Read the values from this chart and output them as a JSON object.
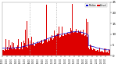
{
  "n_points": 1440,
  "seed": 7,
  "background_color": "#ffffff",
  "plot_background": "#ffffff",
  "bar_color": "#dd0000",
  "median_color": "#0000cc",
  "vline_color": "#aaaaaa",
  "vline_positions": [
    360,
    720
  ],
  "ylim": [
    0,
    25
  ],
  "ytick_right": true,
  "legend_median_color": "#0000cc",
  "legend_actual_color": "#dd0000",
  "figsize": [
    1.6,
    0.87
  ],
  "dpi": 100
}
